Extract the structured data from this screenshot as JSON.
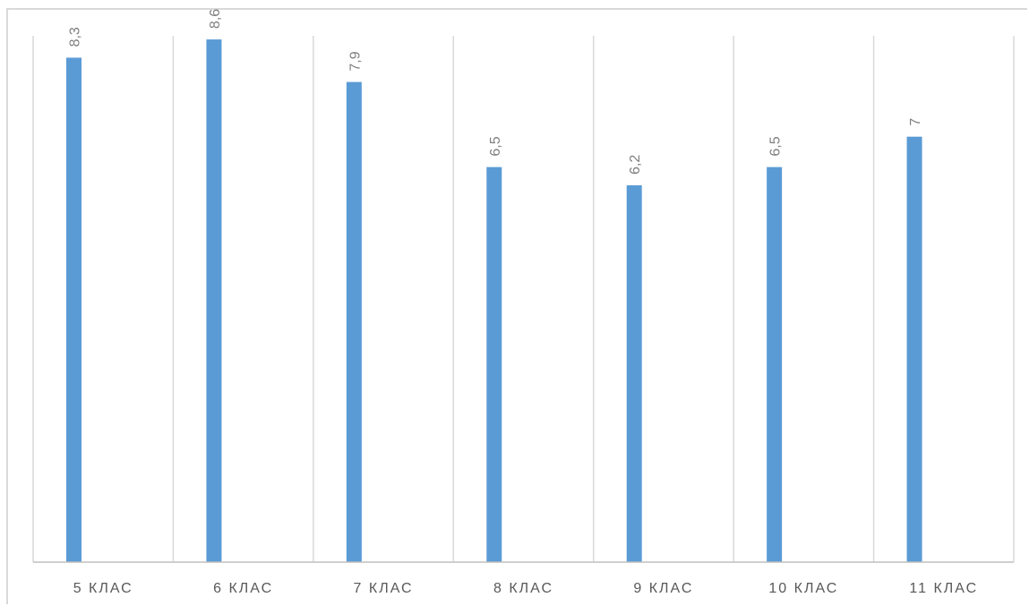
{
  "chart_data": {
    "type": "bar",
    "categories": [
      "5 КЛАС",
      "6 КЛАС",
      "7 КЛАС",
      "8 КЛАС",
      "9 КЛАС",
      "10 КЛАС",
      "11 КЛАС"
    ],
    "values": [
      8.3,
      8.6,
      7.9,
      6.5,
      6.2,
      6.5,
      7
    ],
    "data_labels": [
      "8,3",
      "8,6",
      "7,9",
      "6,5",
      "6,2",
      "6,5",
      "7"
    ],
    "title": "",
    "xlabel": "",
    "ylabel": "",
    "ylim": [
      0,
      10
    ],
    "grid": "vertical",
    "legend": "none",
    "data_label_orientation": "rotated",
    "colors": {
      "bar": "#5b9bd5",
      "grid": "#d9d9d9",
      "axis": "#bfbfbf",
      "data_label": "#7f7f7f",
      "category_label": "#595959"
    }
  }
}
